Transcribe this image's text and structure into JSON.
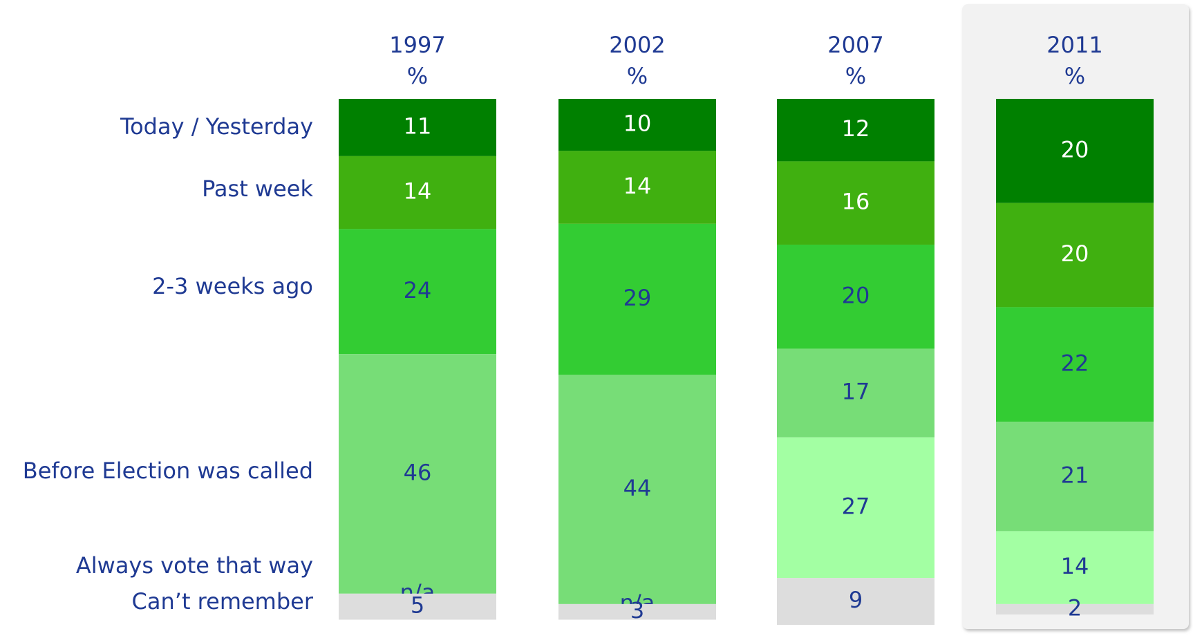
{
  "chart_data": {
    "type": "bar",
    "stacked": true,
    "unit": "%",
    "categories": [
      "1997",
      "2002",
      "2007",
      "2011"
    ],
    "series": [
      {
        "name": "Today / Yesterday",
        "color": "#008000",
        "values": [
          11,
          10,
          12,
          20
        ]
      },
      {
        "name": "Past week",
        "color": "#40b010",
        "values": [
          14,
          14,
          16,
          20
        ]
      },
      {
        "name": "2-3 weeks ago",
        "color": "#33cc33",
        "values": [
          24,
          29,
          20,
          22
        ]
      },
      {
        "name": "Before Election was called",
        "color": "#77dd77",
        "values": [
          46,
          44,
          17,
          21
        ]
      },
      {
        "name": "Always vote that way",
        "color": "#a3ffa3",
        "values": [
          null,
          null,
          27,
          14
        ],
        "value_labels": [
          "n/a",
          "n/a",
          "27",
          "14"
        ]
      },
      {
        "name": "Can’t remember",
        "color": "#dddddd",
        "values": [
          5,
          3,
          9,
          2
        ]
      }
    ]
  }
}
